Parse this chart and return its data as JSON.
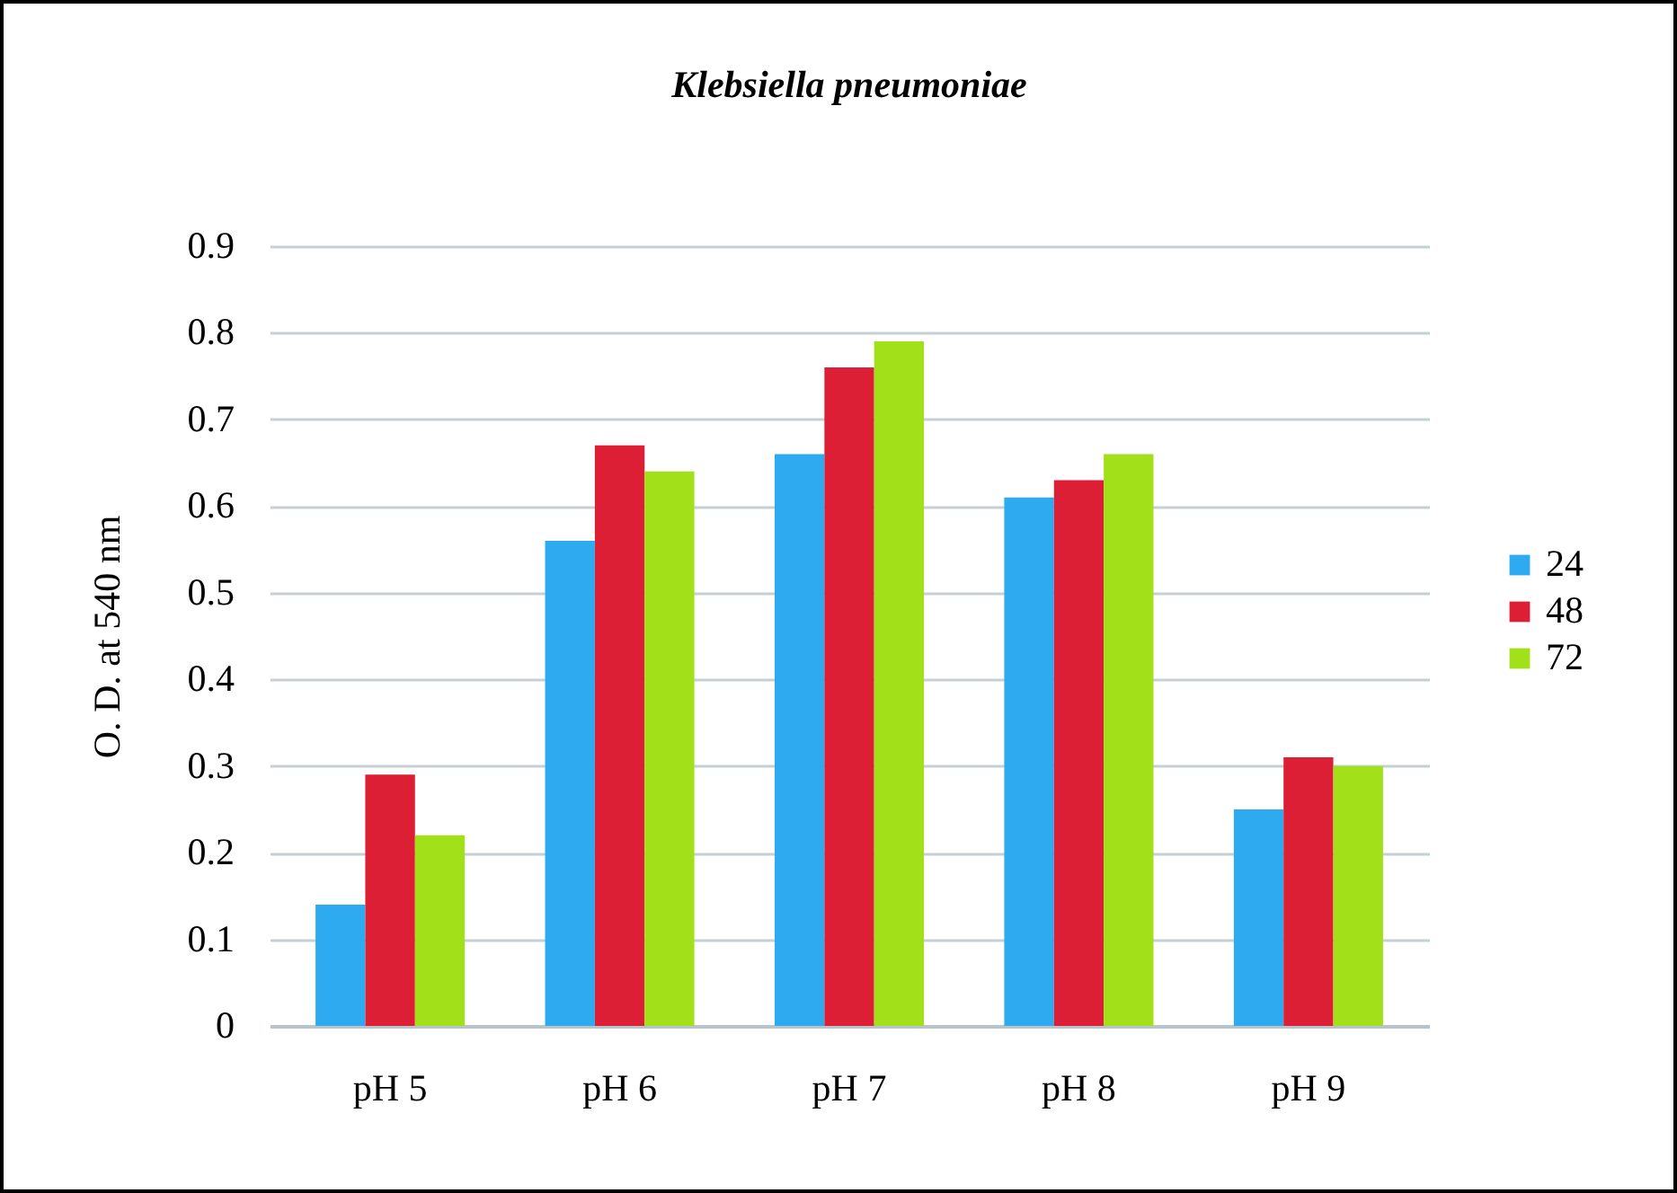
{
  "chart_data": {
    "type": "bar",
    "title": "Klebsiella pneumoniae",
    "ylabel": "O. D. at 540 nm",
    "categories": [
      "pH 5",
      "pH 6",
      "pH 7",
      "pH 8",
      "pH 9"
    ],
    "series": [
      {
        "name": "24",
        "color": "#2eaaf0",
        "values": [
          0.14,
          0.56,
          0.66,
          0.61,
          0.25
        ]
      },
      {
        "name": "48",
        "color": "#dc1f35",
        "values": [
          0.29,
          0.67,
          0.76,
          0.63,
          0.31
        ]
      },
      {
        "name": "72",
        "color": "#a2e01a",
        "values": [
          0.22,
          0.64,
          0.79,
          0.66,
          0.3
        ]
      }
    ],
    "ylim": [
      0,
      0.9
    ],
    "yticks": [
      0,
      0.1,
      0.2,
      0.3,
      0.4,
      0.5,
      0.6,
      0.7,
      0.8,
      0.9
    ],
    "grid": "y",
    "legend": "right"
  }
}
